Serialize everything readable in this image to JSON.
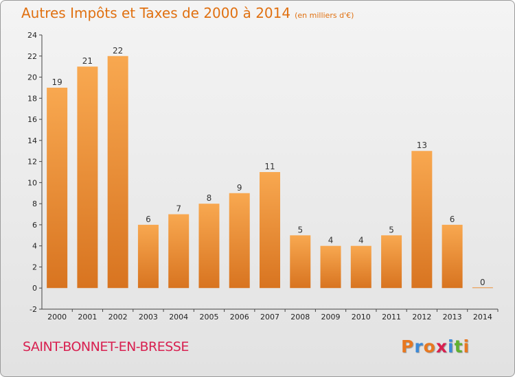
{
  "chart_data": {
    "type": "bar",
    "title": "Autres Impôts et Taxes de 2000 à 2014",
    "subtitle": "(en milliers d'€)",
    "categories": [
      "2000",
      "2001",
      "2002",
      "2003",
      "2004",
      "2005",
      "2006",
      "2007",
      "2008",
      "2009",
      "2010",
      "2011",
      "2012",
      "2013",
      "2014"
    ],
    "values": [
      19,
      21,
      22,
      6,
      7,
      8,
      9,
      11,
      5,
      4,
      4,
      5,
      13,
      6,
      0
    ],
    "ylim": [
      -2,
      24
    ],
    "yticks": [
      -2,
      0,
      2,
      4,
      6,
      8,
      10,
      12,
      14,
      16,
      18,
      20,
      22,
      24
    ],
    "grid": false,
    "bar_color": "#f0963c"
  },
  "commune": "SAINT-BONNET-EN-BRESSE",
  "logo": {
    "text": "Proxiti",
    "letter_colors": [
      "#e87820",
      "#3c8ad8",
      "#e87820",
      "#d82050",
      "#3c8ad8",
      "#60b030",
      "#e87820"
    ]
  }
}
